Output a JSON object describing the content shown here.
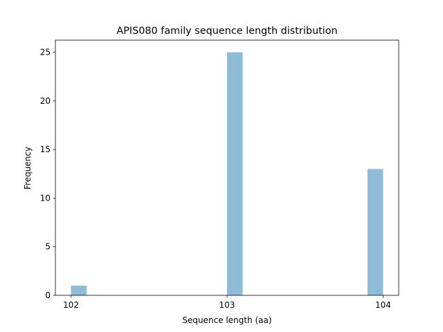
{
  "chart_data": {
    "type": "histogram",
    "title": "APIS080 family sequence length distribution",
    "xlabel": "Sequence length (aa)",
    "ylabel": "Frequency",
    "bins": [
      102,
      102.1,
      102.2,
      102.3,
      102.4,
      102.5,
      102.6,
      102.7,
      102.8,
      102.9,
      103,
      103.1,
      103.2,
      103.3,
      103.4,
      103.5,
      103.6,
      103.7,
      103.8,
      103.9,
      104
    ],
    "counts": [
      1,
      0,
      0,
      0,
      0,
      0,
      0,
      0,
      0,
      0,
      25,
      0,
      0,
      0,
      0,
      0,
      0,
      0,
      0,
      13
    ],
    "color": "#8fbbd9",
    "xlim": [
      101.9,
      104.1
    ],
    "xticks": [
      102,
      103,
      104
    ],
    "ylim": [
      0,
      26.25
    ],
    "yticks": [
      0,
      5,
      10,
      15,
      20,
      25
    ]
  }
}
